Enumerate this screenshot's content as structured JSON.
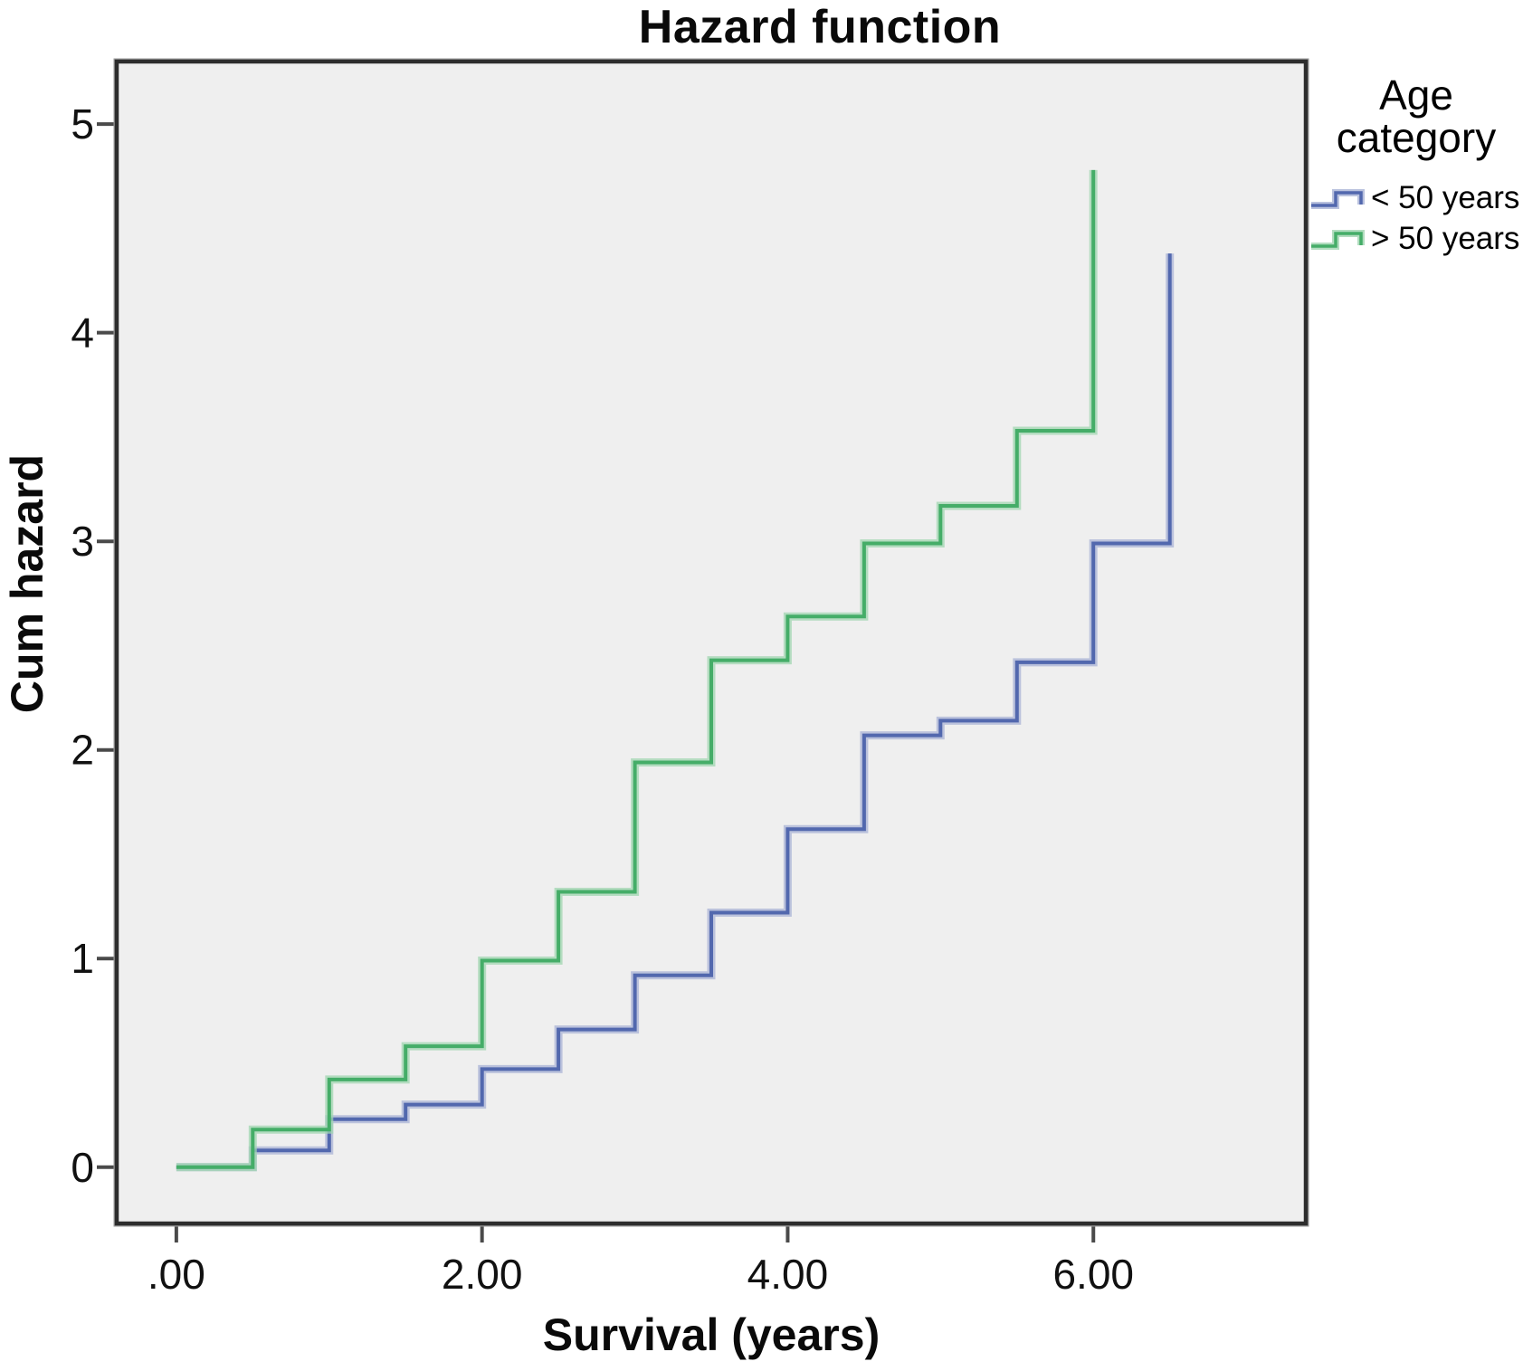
{
  "title": "Hazard function",
  "axes": {
    "x": {
      "label": "Survival (years)",
      "ticks": [
        {
          "label": ".00",
          "value": 0
        },
        {
          "label": "2.00",
          "value": 2
        },
        {
          "label": "4.00",
          "value": 4
        },
        {
          "label": "6.00",
          "value": 6
        }
      ]
    },
    "y": {
      "label": "Cum hazard",
      "ticks": [
        {
          "label": "0",
          "value": 0
        },
        {
          "label": "1",
          "value": 1
        },
        {
          "label": "2",
          "value": 2
        },
        {
          "label": "3",
          "value": 3
        },
        {
          "label": "4",
          "value": 4
        },
        {
          "label": "5",
          "value": 5
        }
      ]
    }
  },
  "legend": {
    "title_lines": [
      "Age",
      "category"
    ],
    "items": [
      {
        "key": "under-50",
        "label": "< 50 years",
        "color": "#5268ae",
        "halo": "#a9b3d6"
      },
      {
        "key": "over-50",
        "label": "> 50 years",
        "color": "#45ad68",
        "halo": "#a0d5b0"
      }
    ]
  },
  "colors": {
    "plot_background": "#efefef",
    "frame": "#2d2d2d",
    "frame_outer": "#9a9a9a",
    "tick": "#4a4a4a",
    "blue_series": "#5268ae",
    "blue_halo": "#a9b3d6",
    "green_series": "#45ad68",
    "green_halo": "#a0d5b0"
  },
  "chart_data": {
    "type": "line",
    "subtype": "step-post",
    "title": "Hazard function",
    "xlabel": "Survival (years)",
    "ylabel": "Cum hazard",
    "xlim": [
      -0.39,
      7.39
    ],
    "ylim": [
      -0.27,
      5.3
    ],
    "x_tick_values": [
      0,
      2,
      4,
      6
    ],
    "y_tick_values": [
      0,
      1,
      2,
      3,
      4,
      5
    ],
    "grid": false,
    "legend_position": "right-top",
    "legend_title": "Age category",
    "series": [
      {
        "name": "< 50 years",
        "key": "under-50",
        "color": "#5268ae",
        "points": [
          [
            0,
            0
          ],
          [
            0.5,
            0.08
          ],
          [
            1,
            0.23
          ],
          [
            1.5,
            0.3
          ],
          [
            2,
            0.47
          ],
          [
            2.5,
            0.66
          ],
          [
            3,
            0.92
          ],
          [
            3.5,
            1.22
          ],
          [
            4,
            1.62
          ],
          [
            4.5,
            2.07
          ],
          [
            5,
            2.14
          ],
          [
            5.5,
            2.42
          ],
          [
            6,
            2.99
          ],
          [
            6.5,
            4.38
          ]
        ]
      },
      {
        "name": "> 50 years",
        "key": "over-50",
        "color": "#45ad68",
        "points": [
          [
            0,
            0
          ],
          [
            0.5,
            0.18
          ],
          [
            1,
            0.42
          ],
          [
            1.5,
            0.58
          ],
          [
            2,
            0.99
          ],
          [
            2.5,
            1.32
          ],
          [
            3,
            1.94
          ],
          [
            3.5,
            2.43
          ],
          [
            4,
            2.64
          ],
          [
            4.5,
            2.99
          ],
          [
            5,
            3.17
          ],
          [
            5.5,
            3.53
          ],
          [
            6,
            4.78
          ]
        ]
      }
    ]
  }
}
